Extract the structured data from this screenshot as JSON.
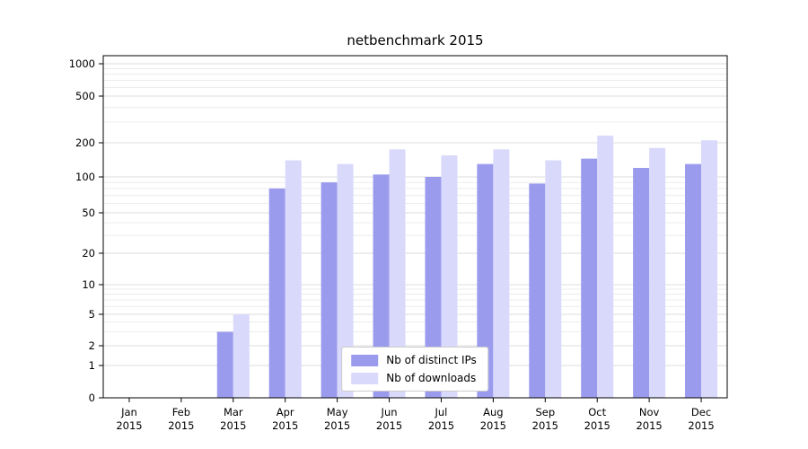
{
  "title": "netbenchmark 2015",
  "chart_data": {
    "type": "bar",
    "title": "netbenchmark 2015",
    "categories": [
      "Jan",
      "Feb",
      "Mar",
      "Apr",
      "May",
      "Jun",
      "Jul",
      "Aug",
      "Sep",
      "Oct",
      "Nov",
      "Dec"
    ],
    "category_year": "2015",
    "series": [
      {
        "name": "Nb of distinct IPs",
        "color": "#9b9bee",
        "values": [
          0,
          0,
          3,
          80,
          90,
          105,
          100,
          130,
          88,
          145,
          120,
          130
        ]
      },
      {
        "name": "Nb of downloads",
        "color": "#d9d9fb",
        "values": [
          0,
          0,
          5,
          140,
          130,
          175,
          155,
          175,
          140,
          230,
          180,
          210
        ]
      }
    ],
    "yscale": "symlog",
    "yticks": [
      0,
      1,
      2,
      5,
      10,
      20,
      50,
      100,
      200,
      500,
      1000
    ],
    "ylim": [
      0,
      1100
    ],
    "grid": true,
    "legend_position": "lower center",
    "colors": {
      "grid_major": "#dcdcdc",
      "grid_minor": "#ececec",
      "axis": "#000000"
    }
  }
}
